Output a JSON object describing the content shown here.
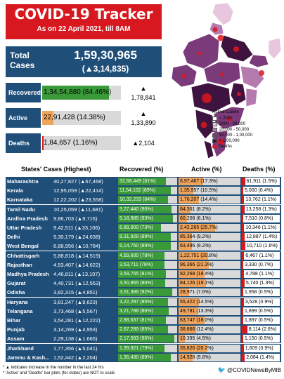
{
  "header": {
    "title": "COVID-19 Tracker",
    "subtitle": "As on 22 April 2021, till 8AM"
  },
  "total": {
    "label": "Total Cases",
    "value": "1,59,30,965",
    "change": "(▲3,14,835)"
  },
  "summary": [
    {
      "label": "Recovered",
      "text": "1,34,54,880 (84.46%)",
      "pct": 84.46,
      "color": "#3a9a3a",
      "change": "▲\n1,78,841"
    },
    {
      "label": "Active",
      "text": "22,91,428 (14.38%)",
      "pct": 14.38,
      "color": "#f0a35b",
      "change": "▲\n1,33,890"
    },
    {
      "label": "Deaths",
      "text": "1,84,657 (1.16%)",
      "pct": 1.16,
      "color": "#d7191f",
      "change": "▲2,104"
    }
  ],
  "map": {
    "legend_title": "Active Cases",
    "legend": [
      {
        "label": "< 2000",
        "color": "#ffffff"
      },
      {
        "label": "2000 - 20,000",
        "color": "#e8c6de"
      },
      {
        "label": "20,000 - 50,000",
        "color": "#b67bae"
      },
      {
        "label": "50,000 - 1,00,000",
        "color": "#7b3a7a"
      },
      {
        "label": "> 1,00,000",
        "color": "#3e1340"
      }
    ],
    "deaths_label": "Deaths"
  },
  "table": {
    "headers": {
      "states": "States' Cases (Highest)",
      "recovered": "Recovered (%)",
      "active": "Active (%)",
      "deaths": "Deaths (%)"
    }
  },
  "chart_data": {
    "type": "table",
    "columns": [
      "State",
      "Cases",
      "Recovered",
      "Active",
      "Deaths"
    ],
    "rows": [
      {
        "state": "Maharashtra",
        "cases": "40,27,827 (▲67,468)",
        "recovered": "32,68,449 (81%)",
        "rec_pct": 81,
        "active": "6,97,467 (17.3%)",
        "act_pct": 17.3,
        "deaths": "61,911 (1.5%)",
        "dth_pct": 1.5
      },
      {
        "state": "Kerala",
        "cases": "12,95,059 (▲22,414)",
        "recovered": "11,54,102 (89%)",
        "rec_pct": 89,
        "active": "1,35,957 (10.5%)",
        "act_pct": 10.5,
        "deaths": "5,000 (0.4%)",
        "dth_pct": 0.4
      },
      {
        "state": "Karnataka",
        "cases": "12,22,202 (▲23,558)",
        "recovered": "10,32,233 (84%)",
        "rec_pct": 84,
        "active": "1,76,207 (14.4%)",
        "act_pct": 14.4,
        "deaths": "13,762 (1.1%)",
        "dth_pct": 1.1
      },
      {
        "state": "Tamil Nadu",
        "cases": "10,25,059 (▲11,681)",
        "recovered": "9,27,440 (90%)",
        "rec_pct": 90,
        "active": "84,361 (8.2%)",
        "act_pct": 8.2,
        "deaths": "13,258 (1.3%)",
        "dth_pct": 1.3
      },
      {
        "state": "Andhra Pradesh",
        "cases": "9,86,703 (▲9,716)",
        "recovered": "9,18,985 (93%)",
        "rec_pct": 93,
        "active": "60,208 (6.1%)",
        "act_pct": 6.1,
        "deaths": "7,510 (0.8%)",
        "dth_pct": 0.8
      },
      {
        "state": "Uttar Pradesh",
        "cases": "9,42,511 (▲33,106)",
        "recovered": "6,89,900 (73%)",
        "rec_pct": 73,
        "active": "2,42,265 (25.7%)",
        "act_pct": 25.7,
        "deaths": "10,346 (1.1%)",
        "dth_pct": 1.1
      },
      {
        "state": "Delhi",
        "cases": "9,30,179 (▲24,638)",
        "recovered": "8,31,928 (89%)",
        "rec_pct": 89,
        "active": "85,364 (9.2%)",
        "act_pct": 9.2,
        "deaths": "12,887 (1.4%)",
        "dth_pct": 1.4
      },
      {
        "state": "West Bengal",
        "cases": "6,88,956 (▲10,784)",
        "recovered": "6,14,750 (89%)",
        "rec_pct": 89,
        "active": "63,496 (9.2%)",
        "act_pct": 9.2,
        "deaths": "10,710 (1.6%)",
        "dth_pct": 1.6
      },
      {
        "state": "Chhattisgarh",
        "cases": "5,88,818 (▲14,519)",
        "recovered": "4,59,600 (78%)",
        "rec_pct": 78,
        "active": "1,22,751 (20.8%)",
        "act_pct": 20.8,
        "deaths": "6,467 (1.1%)",
        "dth_pct": 1.1
      },
      {
        "state": "Rajasthan",
        "cases": "4,53,407 (▲14,622)",
        "recovered": "3,53,711 (78%)",
        "rec_pct": 78,
        "active": "96,366 (21.3%)",
        "act_pct": 21.3,
        "deaths": "3,330 (0.7%)",
        "dth_pct": 0.7
      },
      {
        "state": "Madhya Pradesh",
        "cases": "4,46,811 (▲13,107)",
        "recovered": "3,59,755 (81%)",
        "rec_pct": 81,
        "active": "82,268 (18.4%)",
        "act_pct": 18.4,
        "deaths": "4,788 (1.1%)",
        "dth_pct": 1.1
      },
      {
        "state": "Gujarat",
        "cases": "4,40,731 (▲12,553)",
        "recovered": "3,50,865 (80%)",
        "rec_pct": 80,
        "active": "84,126 (19.1%)",
        "act_pct": 19.1,
        "deaths": "5,740 (1.3%)",
        "dth_pct": 1.3
      },
      {
        "state": "Odisha",
        "cases": "3,82,315 (▲4,851)",
        "recovered": "3,51,386 (92%)",
        "rec_pct": 92,
        "active": "28,971 (7.6%)",
        "act_pct": 7.6,
        "deaths": "1,958 (0.5%)",
        "dth_pct": 0.5
      },
      {
        "state": "Haryana",
        "cases": "3,81,247 (▲9,623)",
        "recovered": "3,22,297 (85%)",
        "rec_pct": 85,
        "active": "55,422 (14.5%)",
        "act_pct": 14.5,
        "deaths": "3,528 (0.9%)",
        "dth_pct": 0.9
      },
      {
        "state": "Telangana",
        "cases": "3,73,468 (▲5,567)",
        "recovered": "3,21,788 (86%)",
        "rec_pct": 86,
        "active": "49,781 (13.3%)",
        "act_pct": 13.3,
        "deaths": "1,899 (0.5%)",
        "dth_pct": 0.5
      },
      {
        "state": "Bihar",
        "cases": "3,54,281 (▲12,222)",
        "recovered": "2,88,637 (81%)",
        "rec_pct": 81,
        "active": "63,747 (18.0%)",
        "act_pct": 18.0,
        "deaths": "1,897 (0.5%)",
        "dth_pct": 0.5
      },
      {
        "state": "Punjab",
        "cases": "3,14,269 (▲4,953)",
        "recovered": "2,67,289 (85%)",
        "rec_pct": 85,
        "active": "38,866 (12.4%)",
        "act_pct": 12.4,
        "deaths": "8,114 (2.6%)",
        "dth_pct": 2.6
      },
      {
        "state": "Assam",
        "cases": "2,29,138 (▲1,665)",
        "recovered": "2,17,593 (95%)",
        "rec_pct": 95,
        "active": "10,395 (4.5%)",
        "act_pct": 4.5,
        "deaths": "1,150 (0.5%)",
        "dth_pct": 0.5
      },
      {
        "state": "Jharkhand",
        "cases": "1,77,356 (▲5,041)",
        "recovered": "1,39,921 (79%)",
        "rec_pct": 79,
        "active": "35,826 (20.2%)",
        "act_pct": 20.2,
        "deaths": "1,609 (0.9%)",
        "dth_pct": 0.9
      },
      {
        "state": "Jammu & Kash...",
        "cases": "1,52,442 (▲2,204)",
        "recovered": "1,35,430 (89%)",
        "rec_pct": 89,
        "active": "14,928 (9.8%)",
        "act_pct": 9.8,
        "deaths": "2,084 (1.4%)",
        "dth_pct": 1.4
      }
    ]
  },
  "colors": {
    "navy": "#1f4e79",
    "recovered": "#3a9a3a",
    "active": "#f0a35b",
    "deaths": "#d7191f",
    "title_red": "#d7191f"
  },
  "footer": {
    "note1": "* ▲ indicates increase in the number in the last 24 hrs",
    "note2": "* 'Active' and 'Deaths' bar plots (for states) are NOT to scale",
    "credit": "@COVIDNewsByMIB"
  }
}
